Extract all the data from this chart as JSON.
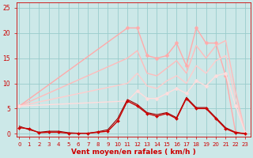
{
  "background_color": "#cce8e8",
  "grid_color": "#99cccc",
  "xlabel": "Vent moyen/en rafales ( km/h )",
  "x_ticks": [
    0,
    1,
    2,
    3,
    4,
    5,
    6,
    7,
    8,
    9,
    10,
    11,
    12,
    13,
    14,
    15,
    16,
    17,
    18,
    19,
    20,
    21,
    22,
    23
  ],
  "ylim": [
    -0.5,
    26
  ],
  "xlim": [
    -0.3,
    23.5
  ],
  "y_ticks": [
    0,
    5,
    10,
    15,
    20,
    25
  ],
  "series": [
    {
      "x": [
        0,
        1,
        2,
        3,
        4,
        5,
        6,
        7,
        8,
        9,
        10,
        11,
        12,
        13,
        14,
        15,
        16,
        17,
        18,
        19,
        20,
        21,
        22,
        23
      ],
      "y": [
        1.2,
        1.0,
        0.2,
        0.3,
        0.3,
        0.1,
        0.1,
        0.1,
        0.3,
        0.5,
        2.5,
        6.5,
        5.5,
        4.0,
        3.5,
        4.0,
        3.0,
        7.0,
        5.0,
        5.0,
        3.0,
        1.0,
        0.2,
        0.0
      ],
      "color": "#cc0000",
      "lw": 1.0,
      "marker": "D",
      "ms": 2.0,
      "zorder": 5
    },
    {
      "x": [
        0,
        1,
        2,
        3,
        4,
        5,
        6,
        7,
        8,
        9,
        10,
        11,
        12,
        13,
        14,
        15,
        16,
        17,
        18,
        19,
        20,
        21,
        22,
        23
      ],
      "y": [
        1.5,
        0.8,
        0.3,
        0.5,
        0.5,
        0.2,
        0.1,
        0.1,
        0.4,
        0.8,
        3.0,
        6.8,
        5.8,
        4.2,
        3.8,
        4.2,
        3.2,
        7.2,
        5.2,
        5.2,
        3.2,
        1.2,
        0.3,
        0.0
      ],
      "color": "#990000",
      "lw": 0.8,
      "marker": null,
      "ms": 0,
      "zorder": 4
    },
    {
      "x": [
        0,
        11,
        12,
        13,
        14,
        15,
        16,
        17,
        18,
        19,
        20,
        21,
        22,
        23
      ],
      "y": [
        5.5,
        21.0,
        21.0,
        15.5,
        15.0,
        15.5,
        18.0,
        13.5,
        21.0,
        18.0,
        18.0,
        11.5,
        0.3,
        0.1
      ],
      "color": "#ffaaaa",
      "lw": 1.0,
      "marker": "D",
      "ms": 2.5,
      "zorder": 2
    },
    {
      "x": [
        0,
        11,
        12,
        13,
        14,
        15,
        16,
        17,
        18,
        19,
        20,
        21,
        22,
        23
      ],
      "y": [
        5.5,
        15.0,
        16.5,
        12.0,
        11.5,
        13.0,
        14.5,
        12.0,
        17.5,
        15.0,
        17.5,
        18.5,
        8.5,
        0.2
      ],
      "color": "#ffbbbb",
      "lw": 1.0,
      "marker": null,
      "ms": 0,
      "zorder": 2
    },
    {
      "x": [
        0,
        11,
        12,
        13,
        14,
        15,
        16,
        17,
        18,
        19,
        20,
        21,
        22,
        23
      ],
      "y": [
        5.5,
        10.0,
        12.0,
        9.5,
        9.0,
        10.5,
        11.5,
        10.0,
        13.5,
        12.0,
        14.5,
        15.5,
        7.0,
        0.2
      ],
      "color": "#ffcccc",
      "lw": 1.0,
      "marker": null,
      "ms": 0,
      "zorder": 2
    },
    {
      "x": [
        0,
        11,
        12,
        13,
        14,
        15,
        16,
        17,
        18,
        19,
        20,
        21,
        22,
        23
      ],
      "y": [
        5.5,
        6.5,
        8.5,
        7.0,
        7.0,
        8.0,
        9.0,
        8.0,
        10.5,
        9.5,
        11.5,
        12.0,
        5.5,
        0.2
      ],
      "color": "#ffdddd",
      "lw": 1.0,
      "marker": "D",
      "ms": 2.5,
      "zorder": 2
    }
  ],
  "tick_label_color": "#cc0000",
  "label_color": "#cc0000",
  "axis_color": "#cc0000",
  "tick_fontsize": 5.0,
  "label_fontsize": 6.5
}
